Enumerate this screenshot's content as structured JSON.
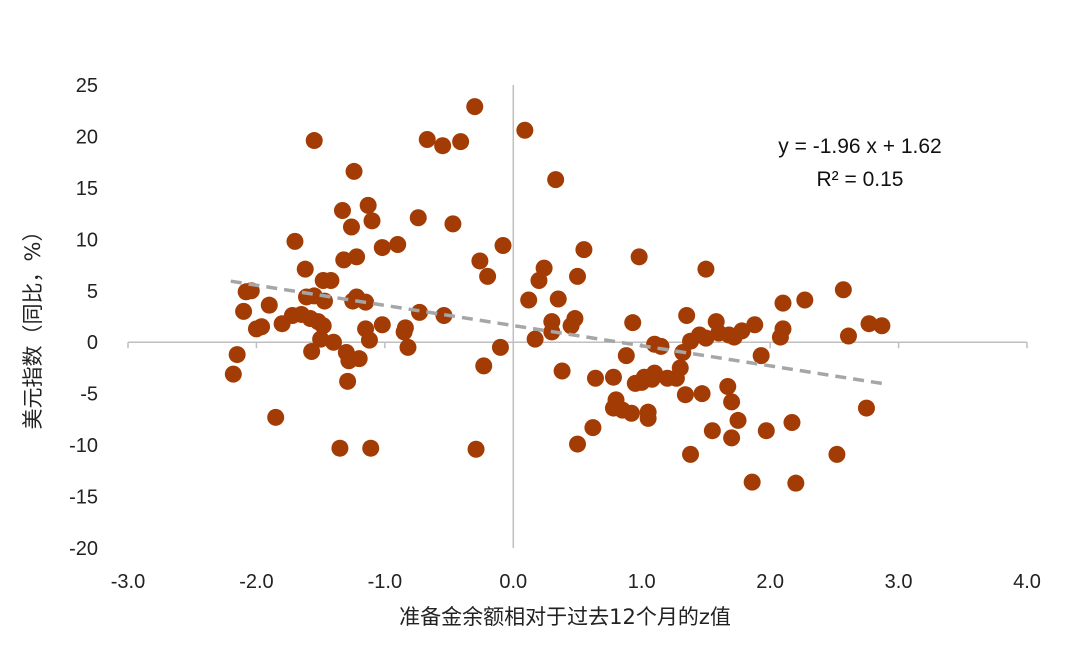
{
  "chart_data": {
    "type": "scatter",
    "xlabel": "准备金余额相对于过去12个月的z值",
    "ylabel": "美元指数（同比，%）",
    "xlim": [
      -3,
      4
    ],
    "ylim": [
      -20,
      25
    ],
    "x_ticks": [
      -3,
      -2,
      -1,
      0,
      1,
      2,
      3,
      4
    ],
    "x_tick_labels": [
      "-3.0",
      "-2.0",
      "-1.0",
      "0.0",
      "1.0",
      "2.0",
      "3.0",
      "4.0"
    ],
    "y_ticks": [
      25,
      20,
      15,
      10,
      5,
      0,
      -5,
      -10,
      -15,
      -20
    ],
    "y_tick_labels": [
      "25",
      "20",
      "15",
      "10",
      "5",
      "0",
      "-5",
      "-10",
      "-15",
      "-20"
    ],
    "grid": false,
    "marker_color": "#A33C04",
    "trend_color": "#A6A6A6",
    "trendline": {
      "slope": -1.96,
      "intercept": 1.62,
      "x_range": [
        -2.2,
        2.9
      ],
      "style": "dashed",
      "equation": "y = -1.96 x + 1.62",
      "r2": "R² = 0.15"
    },
    "points": [
      [
        -2.18,
        -3.1
      ],
      [
        -2.15,
        -1.2
      ],
      [
        -2.1,
        3.0
      ],
      [
        -2.08,
        4.9
      ],
      [
        -2.04,
        5.0
      ],
      [
        -2.0,
        1.3
      ],
      [
        -1.96,
        1.5
      ],
      [
        -1.9,
        3.6
      ],
      [
        -1.85,
        -7.3
      ],
      [
        -1.8,
        1.8
      ],
      [
        -1.72,
        2.6
      ],
      [
        -1.7,
        9.8
      ],
      [
        -1.65,
        2.7
      ],
      [
        -1.62,
        7.1
      ],
      [
        -1.61,
        4.4
      ],
      [
        -1.58,
        2.3
      ],
      [
        -1.57,
        -0.9
      ],
      [
        -1.55,
        19.6
      ],
      [
        -1.55,
        4.5
      ],
      [
        -1.52,
        2.0
      ],
      [
        -1.5,
        0.3
      ],
      [
        -1.48,
        1.6
      ],
      [
        -1.48,
        6.0
      ],
      [
        -1.47,
        4.0
      ],
      [
        -1.42,
        6.0
      ],
      [
        -1.4,
        0.0
      ],
      [
        -1.35,
        -10.3
      ],
      [
        -1.33,
        12.8
      ],
      [
        -1.32,
        8.0
      ],
      [
        -1.3,
        -1.0
      ],
      [
        -1.29,
        -3.8
      ],
      [
        -1.28,
        -1.8
      ],
      [
        -1.26,
        11.2
      ],
      [
        -1.25,
        4.0
      ],
      [
        -1.24,
        16.6
      ],
      [
        -1.22,
        4.4
      ],
      [
        -1.22,
        8.3
      ],
      [
        -1.2,
        -1.6
      ],
      [
        -1.15,
        1.3
      ],
      [
        -1.15,
        3.9
      ],
      [
        -1.13,
        13.3
      ],
      [
        -1.12,
        0.2
      ],
      [
        -1.11,
        -10.3
      ],
      [
        -1.1,
        11.8
      ],
      [
        -1.02,
        9.2
      ],
      [
        -1.02,
        1.7
      ],
      [
        -0.9,
        9.5
      ],
      [
        -0.85,
        1.0
      ],
      [
        -0.84,
        1.4
      ],
      [
        -0.82,
        -0.5
      ],
      [
        -0.74,
        12.1
      ],
      [
        -0.73,
        2.9
      ],
      [
        -0.67,
        19.7
      ],
      [
        -0.55,
        19.1
      ],
      [
        -0.54,
        2.6
      ],
      [
        -0.47,
        11.5
      ],
      [
        -0.41,
        19.5
      ],
      [
        -0.3,
        22.9
      ],
      [
        -0.29,
        -10.4
      ],
      [
        -0.26,
        7.9
      ],
      [
        -0.23,
        -2.3
      ],
      [
        -0.2,
        6.4
      ],
      [
        -0.1,
        -0.5
      ],
      [
        -0.08,
        9.4
      ],
      [
        0.09,
        20.6
      ],
      [
        0.12,
        4.1
      ],
      [
        0.17,
        0.3
      ],
      [
        0.2,
        6.0
      ],
      [
        0.24,
        7.2
      ],
      [
        0.3,
        1.0
      ],
      [
        0.3,
        2.0
      ],
      [
        0.33,
        15.8
      ],
      [
        0.35,
        4.2
      ],
      [
        0.38,
        -2.8
      ],
      [
        0.45,
        1.6
      ],
      [
        0.48,
        2.3
      ],
      [
        0.5,
        -9.9
      ],
      [
        0.5,
        6.4
      ],
      [
        0.55,
        9.0
      ],
      [
        0.62,
        -8.3
      ],
      [
        0.64,
        -3.5
      ],
      [
        0.78,
        -6.4
      ],
      [
        0.78,
        -3.4
      ],
      [
        0.8,
        -5.6
      ],
      [
        0.85,
        -6.6
      ],
      [
        0.88,
        -1.3
      ],
      [
        0.92,
        -6.9
      ],
      [
        0.93,
        1.9
      ],
      [
        0.95,
        -4.0
      ],
      [
        0.98,
        8.3
      ],
      [
        1.0,
        -3.9
      ],
      [
        1.02,
        -3.4
      ],
      [
        1.05,
        -6.8
      ],
      [
        1.05,
        -7.4
      ],
      [
        1.08,
        -3.6
      ],
      [
        1.1,
        -0.2
      ],
      [
        1.1,
        -3.0
      ],
      [
        1.15,
        -0.4
      ],
      [
        1.2,
        -3.5
      ],
      [
        1.27,
        -3.5
      ],
      [
        1.3,
        -2.5
      ],
      [
        1.32,
        -1.0
      ],
      [
        1.34,
        -5.1
      ],
      [
        1.35,
        2.6
      ],
      [
        1.38,
        0.1
      ],
      [
        1.38,
        -10.9
      ],
      [
        1.45,
        0.7
      ],
      [
        1.47,
        -5.0
      ],
      [
        1.5,
        7.1
      ],
      [
        1.5,
        0.4
      ],
      [
        1.55,
        -8.6
      ],
      [
        1.58,
        2.0
      ],
      [
        1.6,
        0.9
      ],
      [
        1.67,
        -4.3
      ],
      [
        1.68,
        0.7
      ],
      [
        1.7,
        -5.8
      ],
      [
        1.7,
        -9.3
      ],
      [
        1.72,
        0.5
      ],
      [
        1.75,
        -7.6
      ],
      [
        1.78,
        1.1
      ],
      [
        1.86,
        -13.6
      ],
      [
        1.88,
        1.7
      ],
      [
        1.93,
        -1.3
      ],
      [
        1.97,
        -8.6
      ],
      [
        2.08,
        0.5
      ],
      [
        2.1,
        1.3
      ],
      [
        2.1,
        3.8
      ],
      [
        2.17,
        -7.8
      ],
      [
        2.2,
        -13.7
      ],
      [
        2.27,
        4.1
      ],
      [
        2.52,
        -10.9
      ],
      [
        2.57,
        5.1
      ],
      [
        2.61,
        0.6
      ],
      [
        2.75,
        -6.4
      ],
      [
        2.77,
        1.8
      ],
      [
        2.87,
        1.6
      ]
    ]
  }
}
